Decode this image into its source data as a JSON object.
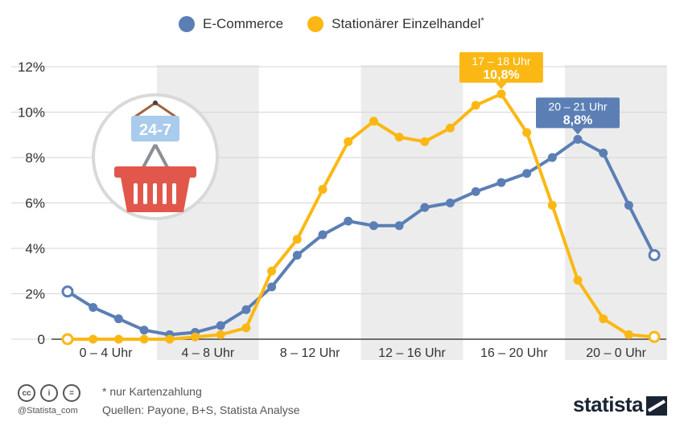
{
  "legend": {
    "ecommerce": "E-Commerce",
    "retail": "Stationärer Einzelhandel",
    "retail_sup": "*"
  },
  "colors": {
    "ecommerce": "#5b7fb5",
    "retail": "#fbb814",
    "band": "#ececec",
    "grid": "#d5d5d5"
  },
  "illustration": {
    "sign_text": "24-7",
    "icon": "shopping-basket-icon"
  },
  "chart_data": {
    "type": "line",
    "x": [
      0,
      1,
      2,
      3,
      4,
      5,
      6,
      7,
      8,
      9,
      10,
      11,
      12,
      13,
      14,
      15,
      16,
      17,
      18,
      19,
      20,
      21,
      22,
      23
    ],
    "categories": [
      "0 – 4 Uhr",
      "4 – 8 Uhr",
      "8 – 12 Uhr",
      "12 – 16 Uhr",
      "16 – 20 Uhr",
      "20 – 0 Uhr"
    ],
    "ylim": [
      0,
      12
    ],
    "yticks": [
      "0",
      "2%",
      "4%",
      "6%",
      "8%",
      "10%",
      "12%"
    ],
    "grid": true,
    "legend_position": "top",
    "series": [
      {
        "name": "E-Commerce",
        "values": [
          2.1,
          1.4,
          0.9,
          0.4,
          0.2,
          0.3,
          0.6,
          1.3,
          2.3,
          3.7,
          4.6,
          5.2,
          5.0,
          5.0,
          5.8,
          6.0,
          6.5,
          6.9,
          7.3,
          8.0,
          8.8,
          8.2,
          5.9,
          3.7
        ]
      },
      {
        "name": "Stationärer Einzelhandel*",
        "values": [
          0,
          0,
          0,
          0,
          0,
          0.1,
          0.2,
          0.5,
          3.0,
          4.4,
          6.6,
          8.7,
          9.6,
          8.9,
          8.7,
          9.3,
          10.3,
          10.8,
          9.1,
          5.9,
          2.6,
          0.9,
          0.2,
          0.1
        ]
      }
    ],
    "annotations": [
      {
        "series": 1,
        "index": 17,
        "label": "17 – 18 Uhr",
        "value": "10,8%"
      },
      {
        "series": 0,
        "index": 20,
        "label": "20 – 21 Uhr",
        "value": "8,8%"
      }
    ]
  },
  "footer": {
    "note": "* nur Kartenzahlung",
    "sources": "Quellen: Payone, B+S, Statista Analyse",
    "handle": "@Statista_com",
    "cc_labels": [
      "cc",
      "i",
      "="
    ],
    "brand": "statista"
  }
}
